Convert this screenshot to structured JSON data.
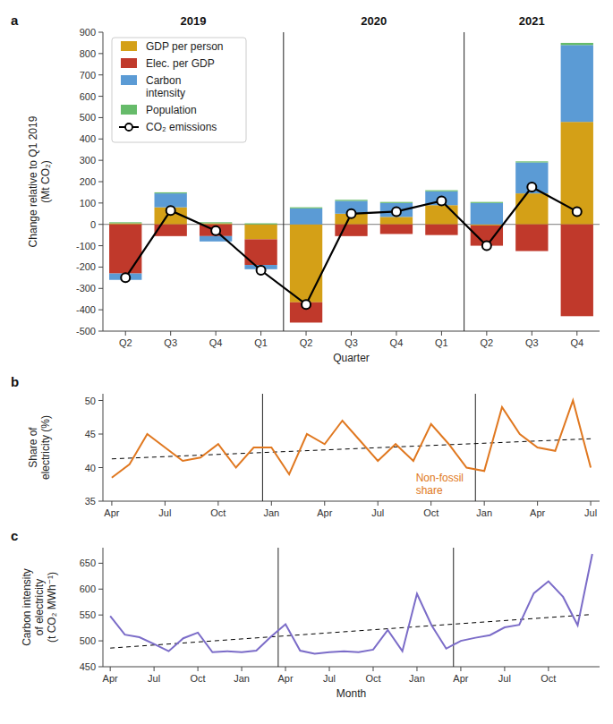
{
  "chart_data": [
    {
      "type": "bar",
      "title": "a",
      "stacked": true,
      "legend": "upper left",
      "categories": [
        "Q2",
        "Q3",
        "Q4",
        "Q1",
        "Q2",
        "Q3",
        "Q4",
        "Q1",
        "Q2",
        "Q3",
        "Q4"
      ],
      "year_labels": [
        "2019",
        "2020",
        "2021"
      ],
      "vlines": [
        3.5,
        7.5
      ],
      "xlabel": "Quarter",
      "ylabel": "Change relative to Q1 2019\n(Mt CO₂)",
      "ylim": [
        -500,
        900
      ],
      "yticks": [
        -500,
        -400,
        -300,
        -200,
        -100,
        0,
        100,
        200,
        300,
        400,
        500,
        600,
        700,
        800,
        900
      ],
      "series": [
        {
          "name": "GDP per person",
          "color": "#d4a017",
          "values": [
            5,
            80,
            5,
            -70,
            -365,
            50,
            35,
            90,
            -5,
            145,
            480
          ]
        },
        {
          "name": "Elec. per GDP",
          "color": "#c0392b",
          "values": [
            -230,
            -55,
            -55,
            -120,
            -95,
            -55,
            -45,
            -50,
            -95,
            -125,
            -430
          ]
        },
        {
          "name": "Carbon\nintensity",
          "color": "#5b9bd5",
          "values": [
            -30,
            65,
            -25,
            -20,
            75,
            60,
            65,
            65,
            100,
            145,
            360
          ]
        },
        {
          "name": "Population",
          "color": "#66bb6a",
          "values": [
            5,
            5,
            5,
            5,
            5,
            5,
            5,
            5,
            5,
            5,
            10
          ]
        },
        {
          "name": "CO₂ emissions",
          "type": "line",
          "color": "#000000",
          "marker": "circle",
          "values": [
            -250,
            65,
            -30,
            -215,
            -375,
            50,
            60,
            110,
            -100,
            175,
            60
          ]
        }
      ]
    },
    {
      "type": "line",
      "title": "b",
      "categories": [
        "Apr",
        null,
        null,
        "Jul",
        null,
        null,
        "Oct",
        null,
        null,
        "Jan",
        null,
        null,
        "Apr",
        null,
        null,
        "Jul",
        null,
        null,
        "Oct",
        null,
        null,
        "Jan",
        null,
        null,
        "Apr",
        null,
        null,
        "Jul"
      ],
      "values": [
        38.5,
        40.5,
        45.0,
        43.0,
        41.0,
        41.5,
        43.5,
        40.0,
        43.0,
        43.0,
        39.0,
        45.0,
        43.5,
        47.0,
        44.0,
        41.0,
        43.5,
        41.0,
        46.5,
        43.5,
        40.0,
        39.5,
        49.0,
        45.0,
        43.0,
        42.5,
        50.0,
        40.0
      ],
      "color": "#e07820",
      "annotation": "Non-fossil\nshare",
      "trend": {
        "values": [
          41.3,
          44.3
        ],
        "line_style": "dashed"
      },
      "vlines": [
        8.5,
        20.5
      ],
      "ylabel": "Share of\nelectricity (%)",
      "ylim": [
        35,
        51
      ],
      "yticks": [
        35,
        40,
        45,
        50
      ]
    },
    {
      "type": "line",
      "title": "c",
      "categories": [
        "Apr",
        null,
        null,
        "Jul",
        null,
        null,
        "Oct",
        null,
        null,
        "Jan",
        null,
        null,
        "Apr",
        null,
        null,
        "Jul",
        null,
        null,
        "Oct",
        null,
        null,
        "Jan",
        null,
        null,
        "Apr",
        null,
        null,
        "Jul",
        null,
        null,
        "Oct",
        null,
        null,
        null
      ],
      "values": [
        548,
        512,
        507,
        494,
        480,
        505,
        516,
        478,
        480,
        478,
        481,
        508,
        532,
        481,
        475,
        478,
        480,
        478,
        483,
        521,
        480,
        591,
        530,
        485,
        500,
        506,
        511,
        526,
        531,
        592,
        615,
        585,
        530,
        668
      ],
      "color": "#7b6cc8",
      "trend": {
        "values": [
          486,
          551
        ],
        "line_style": "dashed"
      },
      "vlines": [
        11.5,
        23.5
      ],
      "xlabel": "Month",
      "ylabel": "Carbon intensity\nof electricity\n(t CO₂ MWh⁻¹)",
      "ylim": [
        450,
        680
      ],
      "yticks": [
        450,
        500,
        550,
        600,
        650
      ]
    }
  ]
}
